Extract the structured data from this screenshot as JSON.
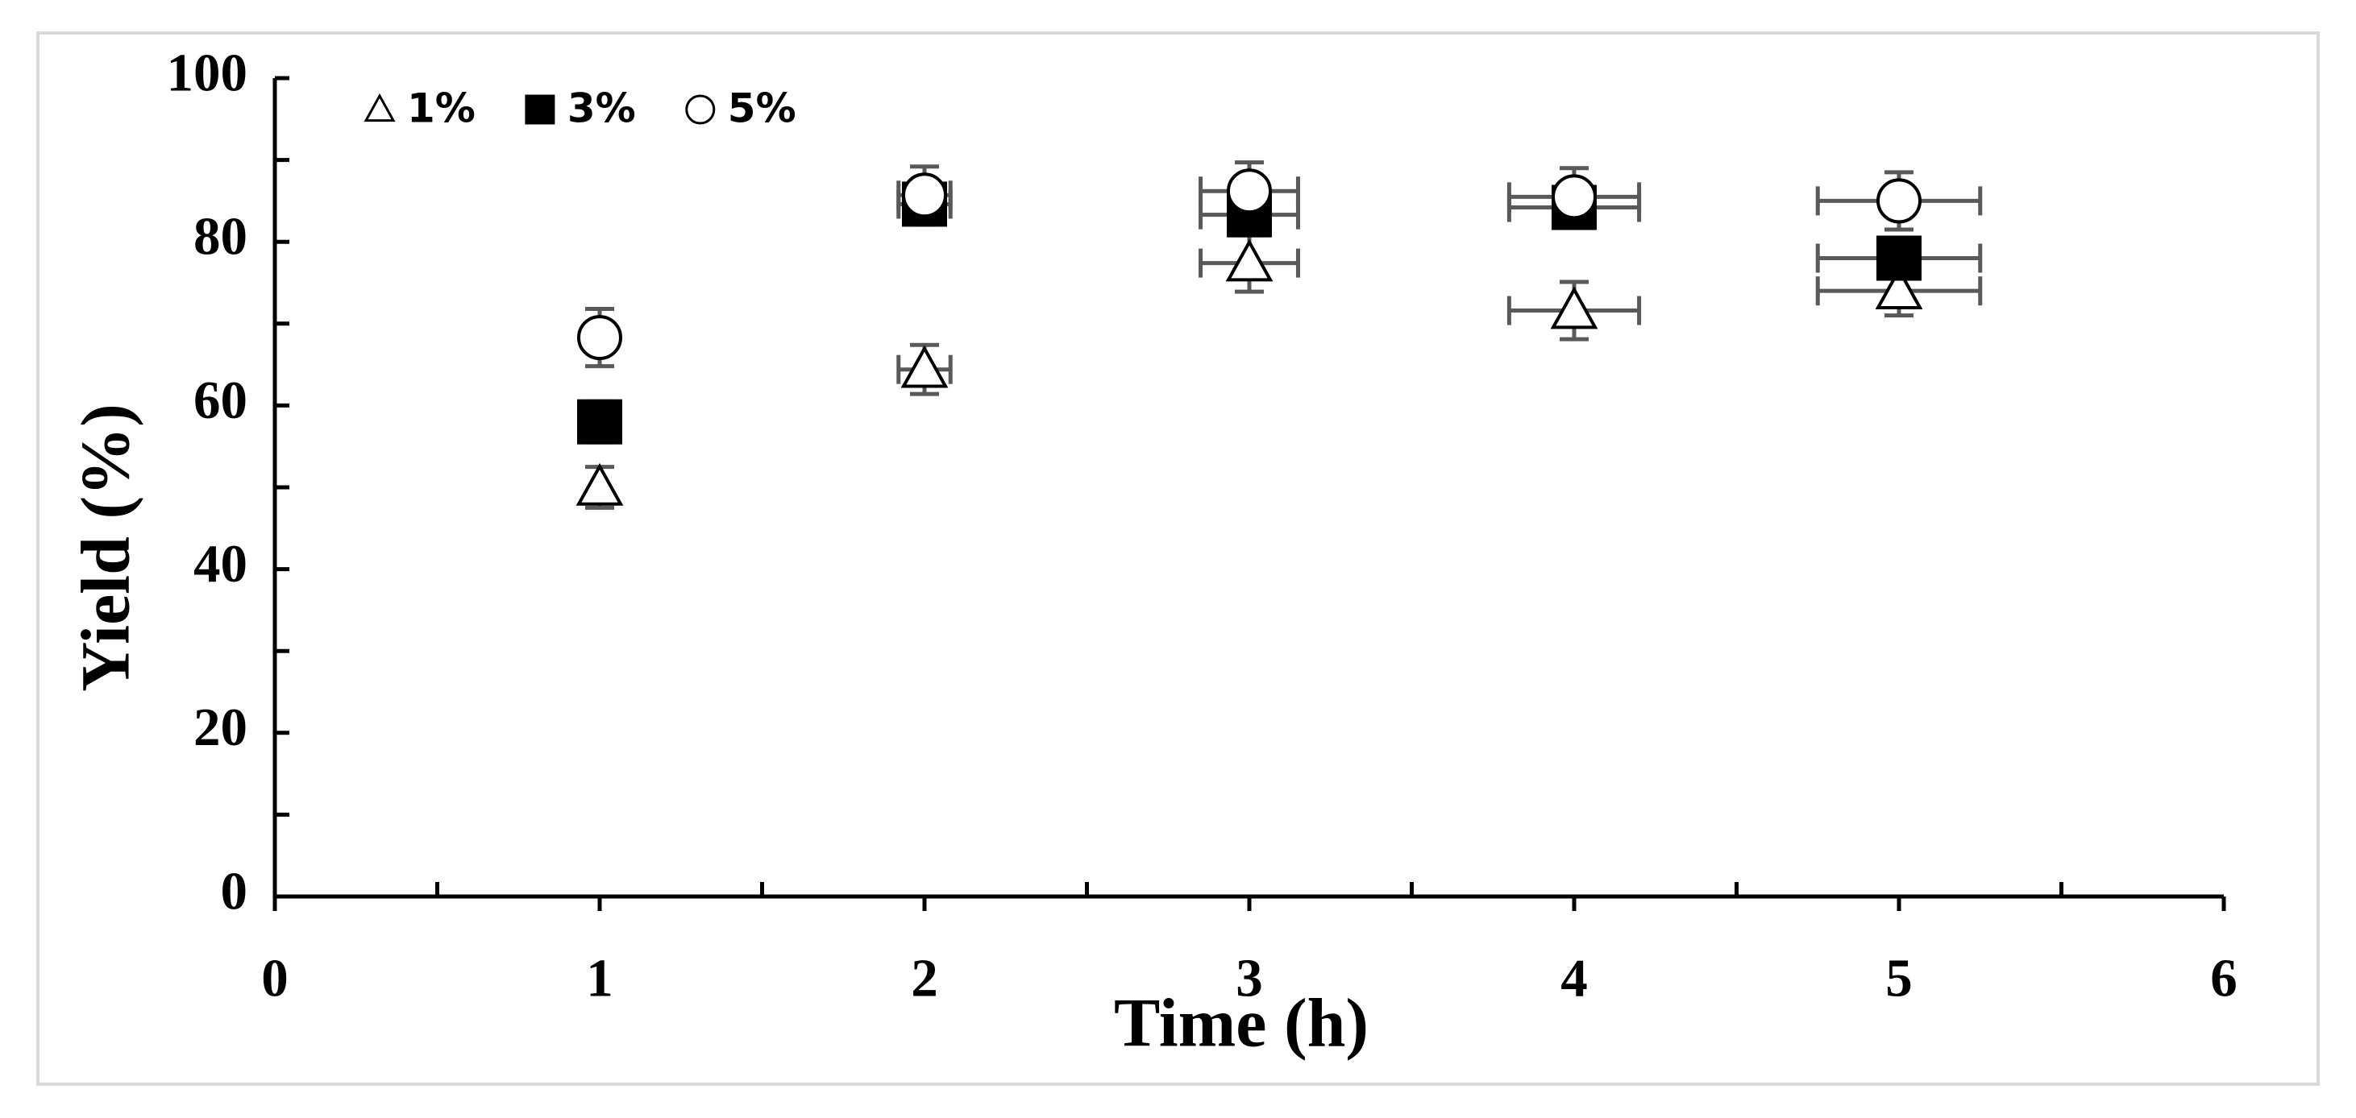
{
  "chart_data": {
    "type": "scatter",
    "xlabel": "Time (h)",
    "ylabel": "Yield (%)",
    "x": [
      1,
      2,
      3,
      4,
      5
    ],
    "xlim": [
      0,
      6
    ],
    "xticks": [
      0,
      1,
      2,
      3,
      4,
      5,
      6
    ],
    "xminorticks": [
      0.5,
      1.5,
      2.5,
      3.5,
      4.5,
      5.5
    ],
    "ylim": [
      0,
      100
    ],
    "yticks": [
      0,
      20,
      40,
      60,
      80,
      100
    ],
    "yminorticks": [
      10,
      30,
      50,
      70,
      90
    ],
    "legend": "top-left",
    "series": [
      {
        "name": "1%",
        "marker": "triangle",
        "color": "#ffffff",
        "edgecolor": "#000000",
        "values": [
          50,
          64.4,
          77.4,
          71.6,
          74
        ],
        "yerr": [
          2.5,
          3,
          3.5,
          3.5,
          3
        ],
        "xerr": [
          0,
          0.08,
          0.15,
          0.2,
          0.25
        ]
      },
      {
        "name": "3%",
        "marker": "square",
        "color": "#000000",
        "edgecolor": "#000000",
        "values": [
          58,
          84.6,
          83.3,
          84.2,
          78
        ],
        "yerr": [
          2.5,
          2.5,
          2.5,
          2.5,
          2.5
        ],
        "xerr": [
          0,
          0.08,
          0.15,
          0.2,
          0.25
        ]
      },
      {
        "name": "5%",
        "marker": "circle",
        "color": "#ffffff",
        "edgecolor": "#000000",
        "values": [
          68.3,
          85.7,
          86.2,
          85.5,
          85
        ],
        "yerr": [
          3.5,
          3.5,
          3.5,
          3.5,
          3.5
        ],
        "xerr": [
          0,
          0.08,
          0.15,
          0.2,
          0.25
        ]
      }
    ]
  }
}
